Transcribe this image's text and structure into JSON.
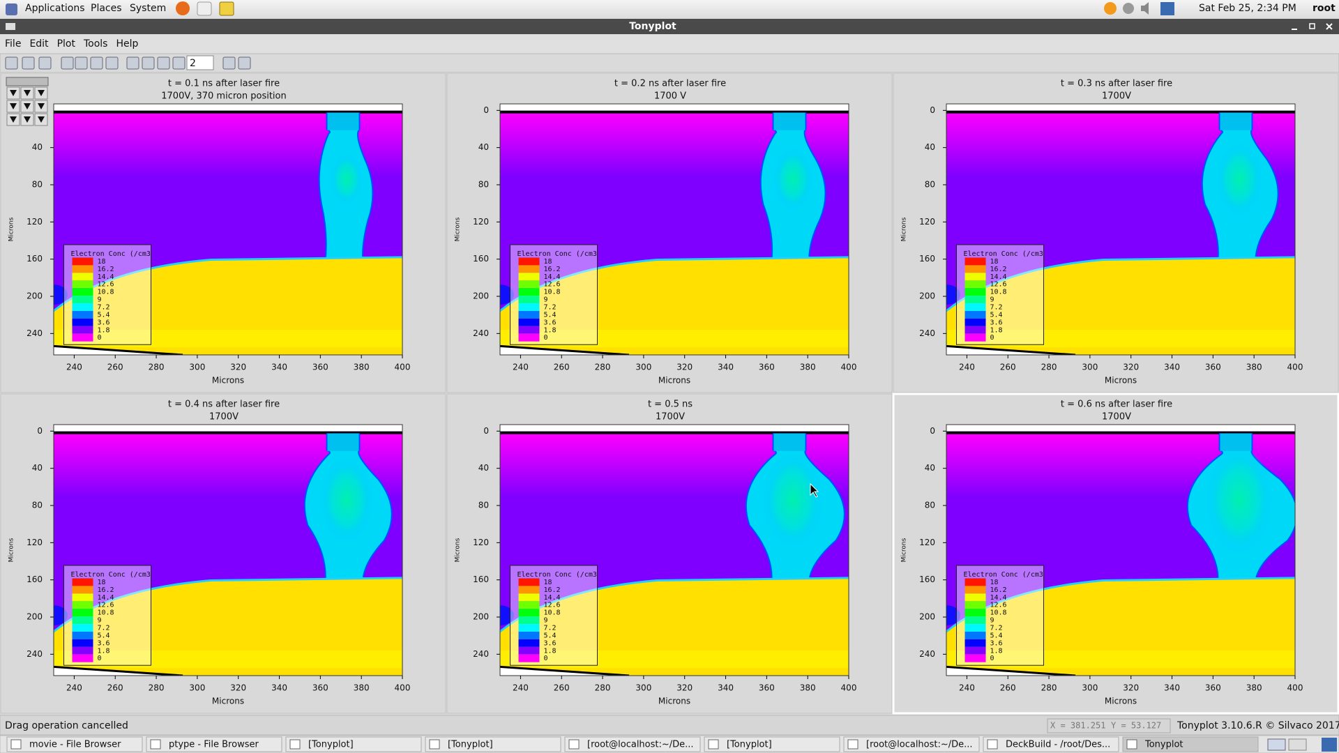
{
  "top_panel": {
    "menus": [
      "Applications",
      "Places",
      "System"
    ],
    "clock": "Sat Feb 25,  2:34 PM",
    "user": "root"
  },
  "window": {
    "title": "Tonyplot",
    "menu": [
      "File",
      "Edit",
      "Plot",
      "Tools",
      "Help"
    ],
    "toolbar": {
      "spin_value": "2"
    },
    "plots": [
      {
        "type": "contour",
        "title": "t = 0.1 ns after laser fire",
        "subtitle": "1700V, 370 micron position",
        "xlabel": "Microns",
        "ylabel": "Microns",
        "xlim": [
          230,
          400
        ],
        "ylim": [
          -7,
          263
        ],
        "y_reversed": true,
        "xticks": [
          240,
          260,
          280,
          300,
          320,
          340,
          360,
          380,
          400
        ],
        "yticks": [
          40,
          80,
          120,
          160,
          200,
          240
        ],
        "legend": {
          "title": "Electron Conc (/cm3",
          "levels": [
            18,
            16.2,
            14.4,
            12.6,
            10.8,
            9,
            7.2,
            5.4,
            3.6,
            1.8,
            0
          ]
        }
      },
      {
        "type": "contour",
        "title": "t = 0.2 ns after laser fire",
        "subtitle": "1700 V",
        "xlabel": "Microns",
        "ylabel": "Microns",
        "xlim": [
          230,
          400
        ],
        "ylim": [
          -7,
          263
        ],
        "y_reversed": true,
        "xticks": [
          240,
          260,
          280,
          300,
          320,
          340,
          360,
          380,
          400
        ],
        "yticks": [
          0,
          40,
          80,
          120,
          160,
          200,
          240
        ],
        "legend": {
          "title": "Electron Conc (/cm3",
          "levels": [
            18,
            16.2,
            14.4,
            12.6,
            10.8,
            9,
            7.2,
            5.4,
            3.6,
            1.8,
            0
          ]
        }
      },
      {
        "type": "contour",
        "title": "t = 0.3 ns after laser fire",
        "subtitle": "1700V",
        "xlabel": "Microns",
        "ylabel": "Microns",
        "xlim": [
          230,
          400
        ],
        "ylim": [
          -7,
          263
        ],
        "y_reversed": true,
        "xticks": [
          240,
          260,
          280,
          300,
          320,
          340,
          360,
          380,
          400
        ],
        "yticks": [
          0,
          40,
          80,
          120,
          160,
          200,
          240
        ],
        "legend": {
          "title": "Electron Conc (/cm3",
          "levels": [
            18,
            16.2,
            14.4,
            12.6,
            10.8,
            9,
            7.2,
            5.4,
            3.6,
            1.8,
            0
          ]
        }
      },
      {
        "type": "contour",
        "title": "t = 0.4 ns after laser fire",
        "subtitle": "1700V",
        "xlabel": "Microns",
        "ylabel": "Microns",
        "xlim": [
          230,
          400
        ],
        "ylim": [
          -7,
          263
        ],
        "y_reversed": true,
        "xticks": [
          240,
          260,
          280,
          300,
          320,
          340,
          360,
          380,
          400
        ],
        "yticks": [
          0,
          40,
          80,
          120,
          160,
          200,
          240
        ],
        "legend": {
          "title": "Electron Conc (/cm3",
          "levels": [
            18,
            16.2,
            14.4,
            12.6,
            10.8,
            9,
            7.2,
            5.4,
            3.6,
            1.8,
            0
          ]
        }
      },
      {
        "type": "contour",
        "title": "t = 0.5 ns",
        "subtitle": "1700V",
        "xlabel": "Microns",
        "ylabel": "Microns",
        "xlim": [
          230,
          400
        ],
        "ylim": [
          -7,
          263
        ],
        "y_reversed": true,
        "xticks": [
          240,
          260,
          280,
          300,
          320,
          340,
          360,
          380,
          400
        ],
        "yticks": [
          0,
          40,
          80,
          120,
          160,
          200,
          240
        ],
        "legend": {
          "title": "Electron Conc (/cm3",
          "levels": [
            18,
            16.2,
            14.4,
            12.6,
            10.8,
            9,
            7.2,
            5.4,
            3.6,
            1.8,
            0
          ]
        }
      },
      {
        "type": "contour",
        "title": "t = 0.6 ns after laser fire",
        "subtitle": "1700V",
        "xlabel": "Microns",
        "ylabel": "Microns",
        "xlim": [
          230,
          400
        ],
        "ylim": [
          -7,
          263
        ],
        "y_reversed": true,
        "xticks": [
          240,
          260,
          280,
          300,
          320,
          340,
          360,
          380,
          400
        ],
        "yticks": [
          0,
          40,
          80,
          120,
          160,
          200,
          240
        ],
        "legend": {
          "title": "Electron Conc (/cm3",
          "levels": [
            18,
            16.2,
            14.4,
            12.6,
            10.8,
            9,
            7.2,
            5.4,
            3.6,
            1.8,
            0
          ]
        }
      }
    ],
    "status": {
      "message": "Drag operation cancelled",
      "x": "X = 381.251",
      "y": "Y = 53.127",
      "version": "Tonyplot 3.10.6.R © Silvaco 2017"
    }
  },
  "taskbar": [
    "movie - File Browser",
    "ptype - File Browser",
    "[Tonyplot]",
    "[Tonyplot]",
    "[root@localhost:~/De...",
    "[Tonyplot]",
    "[root@localhost:~/De...",
    "DeckBuild - /root/Des...",
    "Tonyplot"
  ]
}
